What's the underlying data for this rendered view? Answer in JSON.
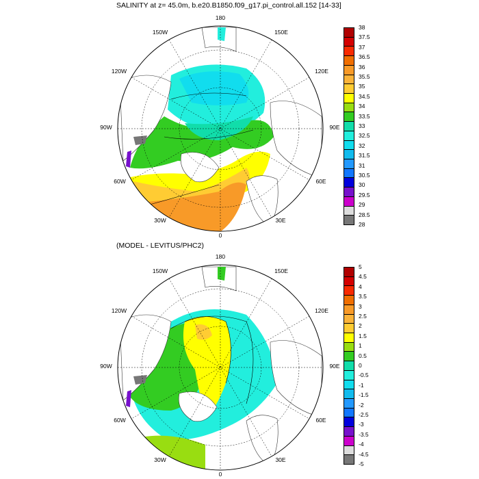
{
  "panels": [
    {
      "title": "SALINITY at z=  45.0m, b.e20.B1850.f09_g17.pi_control.all.152 [14-33]",
      "lon_labels": {
        "top": "180",
        "tl": "150W",
        "tr": "150E",
        "ul": "120W",
        "ur": "120E",
        "l": "90W",
        "r": "90E",
        "ll": "60W",
        "lr": "60E",
        "bl": "30W",
        "br": "30E",
        "bottom": "0"
      },
      "colorbar": {
        "ticks": [
          "38",
          "37.5",
          "37",
          "36.5",
          "36",
          "35.5",
          "35",
          "34.5",
          "34",
          "33.5",
          "33",
          "32.5",
          "32",
          "31.5",
          "31",
          "30.5",
          "30",
          "29.5",
          "29",
          "28.5",
          "28"
        ],
        "colors": [
          "#b00000",
          "#d40000",
          "#f82a00",
          "#f06e00",
          "#f89a28",
          "#fbb339",
          "#ffcc33",
          "#ffff00",
          "#99dd11",
          "#33cc22",
          "#11ddaa",
          "#22eedd",
          "#11ddee",
          "#11bbee",
          "#2299ff",
          "#1177ff",
          "#0000dd",
          "#7711cc",
          "#cc00cc",
          "#dddddd",
          "#777777"
        ]
      }
    },
    {
      "title": "(MODEL - LEVITUS/PHC2)",
      "lon_labels": {
        "top": "180",
        "tl": "150W",
        "tr": "150E",
        "ul": "120W",
        "ur": "120E",
        "l": "90W",
        "r": "90E",
        "ll": "60W",
        "lr": "60E",
        "bl": "30W",
        "br": "30E",
        "bottom": "0"
      },
      "colorbar": {
        "ticks": [
          "5",
          "4.5",
          "4",
          "3.5",
          "3",
          "2.5",
          "2",
          "1.5",
          "1",
          "0.5",
          "0",
          "-0.5",
          "-1",
          "-1.5",
          "-2",
          "-2.5",
          "-3",
          "-3.5",
          "-4",
          "-4.5",
          "-5"
        ],
        "colors": [
          "#b00000",
          "#d40000",
          "#f82a00",
          "#f06e00",
          "#f89a28",
          "#fbb339",
          "#ffcc33",
          "#ffff00",
          "#99dd11",
          "#33cc22",
          "#11ddaa",
          "#22eedd",
          "#11ddee",
          "#11bbee",
          "#2299ff",
          "#1177ff",
          "#0000dd",
          "#7711cc",
          "#cc00cc",
          "#dddddd",
          "#777777"
        ]
      }
    }
  ]
}
